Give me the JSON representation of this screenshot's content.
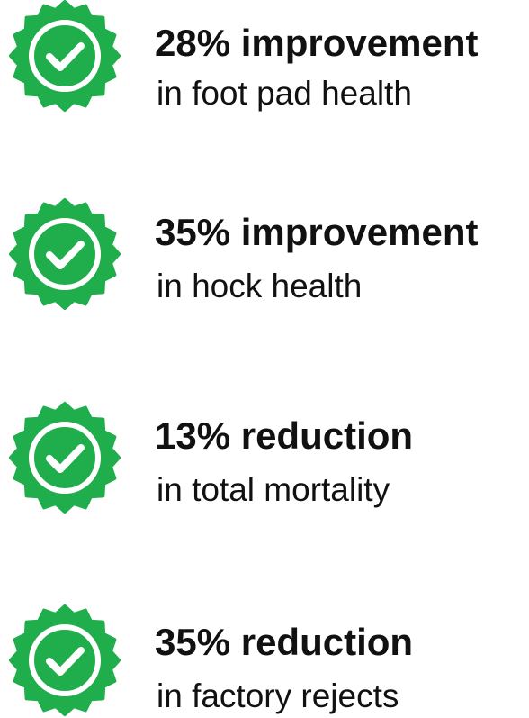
{
  "items": [
    {
      "headline": "28% improvement",
      "detail": "in foot pad health"
    },
    {
      "headline": "35% improvement",
      "detail": "in hock health"
    },
    {
      "headline": "13% reduction",
      "detail": "in total mortality"
    },
    {
      "headline": "35% reduction",
      "detail": "in factory rejects"
    }
  ]
}
